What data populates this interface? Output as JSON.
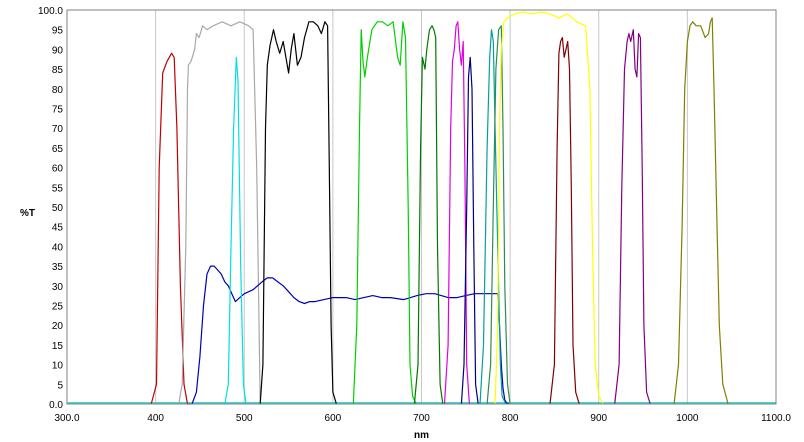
{
  "chart_data": {
    "type": "line",
    "xlabel": "nm",
    "ylabel": "%T",
    "xlim": [
      300,
      1100
    ],
    "ylim": [
      0,
      100
    ],
    "grid": "vertical",
    "x_ticks": [
      "300.0",
      "400",
      "500",
      "600",
      "700",
      "800",
      "900",
      "1000",
      "1100.0"
    ],
    "x_tick_values": [
      300,
      400,
      500,
      600,
      700,
      800,
      900,
      1000,
      1100
    ],
    "y_ticks": [
      "0.0",
      "5",
      "10",
      "15",
      "20",
      "25",
      "30",
      "35",
      "40",
      "45",
      "50",
      "55",
      "60",
      "65",
      "70",
      "75",
      "80",
      "85",
      "90",
      "95",
      "100.0"
    ],
    "y_tick_values": [
      0,
      5,
      10,
      15,
      20,
      25,
      30,
      35,
      40,
      45,
      50,
      55,
      60,
      65,
      70,
      75,
      80,
      85,
      90,
      95,
      100
    ],
    "series": [
      {
        "color": "#00c8c8",
        "x": [
          300,
          1100
        ],
        "y": [
          0.3,
          0.3
        ]
      },
      {
        "color": "#c00000",
        "x": [
          395,
          401,
          404,
          408,
          413,
          418,
          421,
          424,
          428,
          432,
          436,
          440
        ],
        "y": [
          0,
          5,
          60,
          84,
          87,
          89,
          88,
          70,
          30,
          5,
          0,
          0
        ]
      },
      {
        "color": "#a8a8a8",
        "x": [
          426,
          430,
          434,
          436,
          437,
          440,
          444,
          446,
          449,
          453,
          458,
          465,
          475,
          485,
          495,
          505,
          510,
          514,
          518
        ],
        "y": [
          0,
          5,
          40,
          80,
          86,
          87,
          90,
          94,
          93,
          96,
          95,
          96,
          97,
          96,
          97,
          96,
          95,
          60,
          0
        ]
      },
      {
        "color": "#0000b4",
        "x": [
          441,
          446,
          450,
          454,
          458,
          462,
          466,
          470,
          474,
          478,
          482,
          486,
          490,
          495,
          500,
          505,
          510,
          515,
          520,
          526,
          532,
          538,
          544,
          550,
          556,
          562,
          568,
          574,
          580,
          590,
          600,
          615,
          625,
          635,
          645,
          655,
          665,
          680,
          695,
          705,
          715,
          730,
          740,
          750,
          760,
          770,
          780,
          786,
          788,
          790,
          792,
          794,
          796,
          799
        ],
        "y": [
          0,
          3,
          12,
          25,
          33,
          35,
          35,
          34,
          33,
          31,
          30,
          28,
          26,
          27,
          28,
          28.5,
          29,
          30,
          31,
          32,
          32,
          31,
          30,
          28.5,
          27,
          26,
          25.5,
          26,
          26,
          26.5,
          27,
          27,
          26.5,
          27,
          27.5,
          27,
          27,
          26.5,
          27.5,
          28,
          28,
          27,
          27,
          27.5,
          28,
          28,
          28,
          28,
          20,
          10,
          4,
          1,
          0.3,
          0
        ]
      },
      {
        "color": "#00e0e0",
        "x": [
          478,
          482,
          485,
          488,
          491,
          493,
          496,
          499,
          502
        ],
        "y": [
          0,
          5,
          40,
          70,
          88,
          82,
          35,
          5,
          0
        ]
      },
      {
        "color": "#000000",
        "x": [
          518,
          521,
          524,
          526,
          529,
          533,
          536,
          540,
          544,
          547,
          550,
          553,
          556,
          560,
          564,
          568,
          573,
          578,
          583,
          587,
          591,
          594,
          596,
          598,
          600,
          604
        ],
        "y": [
          0,
          10,
          70,
          86,
          91,
          95,
          92,
          89,
          92,
          88,
          84,
          90,
          94,
          86,
          88,
          93,
          97,
          97,
          96,
          94,
          97,
          96,
          60,
          20,
          3,
          0
        ]
      },
      {
        "color": "#00d000",
        "x": [
          623,
          627,
          630,
          632,
          634,
          636,
          639,
          644,
          650,
          656,
          662,
          668,
          673,
          676,
          679,
          682,
          685,
          687,
          690,
          694
        ],
        "y": [
          0,
          20,
          70,
          95,
          87,
          83,
          88,
          95,
          97,
          97,
          96,
          97,
          88,
          86,
          97,
          93,
          50,
          10,
          2,
          0
        ]
      },
      {
        "color": "#007800",
        "x": [
          692,
          696,
          699,
          701,
          704,
          706,
          709,
          712,
          714,
          716,
          718,
          721,
          724
        ],
        "y": [
          0,
          10,
          65,
          88,
          85,
          90,
          95,
          96,
          95,
          93,
          40,
          5,
          0
        ]
      },
      {
        "color": "#e000e0",
        "x": [
          726,
          730,
          733,
          735,
          737,
          739,
          741,
          743,
          745,
          747,
          749,
          751,
          754
        ],
        "y": [
          0,
          15,
          70,
          87,
          90,
          96,
          97,
          90,
          86,
          92,
          60,
          10,
          0
        ]
      },
      {
        "color": "#000080",
        "x": [
          745,
          748,
          751,
          753,
          755,
          757,
          759,
          761,
          764
        ],
        "y": [
          0,
          10,
          50,
          83,
          88,
          80,
          40,
          5,
          0
        ]
      },
      {
        "color": "#00a0a0",
        "x": [
          766,
          770,
          774,
          777,
          779,
          781,
          783,
          785,
          787,
          789,
          791,
          795
        ],
        "y": [
          0,
          15,
          65,
          88,
          95,
          92,
          70,
          50,
          30,
          10,
          2,
          0
        ]
      },
      {
        "color": "#2e8b57",
        "x": [
          774,
          778,
          781,
          784,
          787,
          790,
          792,
          794,
          797,
          800
        ],
        "y": [
          0,
          10,
          50,
          85,
          95,
          96,
          70,
          30,
          5,
          0
        ]
      },
      {
        "color": "#ffff00",
        "x": [
          783,
          786,
          788,
          790,
          793,
          797,
          805,
          815,
          825,
          835,
          845,
          855,
          865,
          875,
          885,
          890,
          893,
          896,
          900,
          905
        ],
        "y": [
          0,
          20,
          70,
          90,
          97,
          98,
          99,
          99.5,
          99,
          99.5,
          99,
          98,
          99,
          97,
          96,
          80,
          40,
          10,
          2,
          0
        ]
      },
      {
        "color": "#800000",
        "x": [
          845,
          850,
          853,
          855,
          857,
          859,
          861,
          863,
          865,
          867,
          869,
          871,
          874,
          878
        ],
        "y": [
          0,
          10,
          65,
          89,
          92,
          93,
          88,
          90,
          92,
          85,
          55,
          15,
          3,
          0
        ]
      },
      {
        "color": "#800080",
        "x": [
          918,
          923,
          926,
          929,
          932,
          934,
          936,
          939,
          941,
          943,
          945,
          947,
          949,
          951,
          954,
          958
        ],
        "y": [
          0,
          10,
          55,
          85,
          92,
          94,
          92,
          95,
          85,
          83,
          94,
          93,
          60,
          20,
          3,
          0
        ]
      },
      {
        "color": "#808000",
        "x": [
          985,
          990,
          994,
          997,
          1000,
          1003,
          1006,
          1010,
          1015,
          1020,
          1024,
          1026,
          1028,
          1030,
          1033,
          1036,
          1040,
          1046
        ],
        "y": [
          0,
          10,
          45,
          80,
          92,
          96,
          97,
          96,
          96,
          93,
          94,
          97,
          98,
          80,
          50,
          20,
          5,
          0
        ]
      }
    ]
  }
}
